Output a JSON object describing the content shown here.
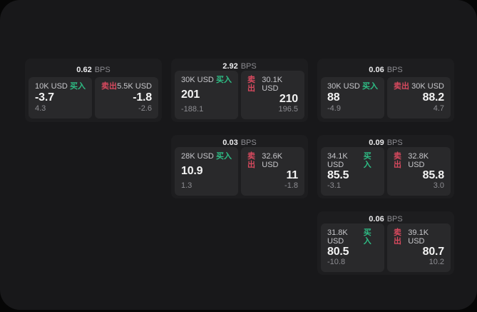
{
  "page": {
    "background": "#060606",
    "panel_background": "#18181a"
  },
  "labels": {
    "bps_unit": "BPS",
    "buy": "买入",
    "sell": "卖出"
  },
  "colors": {
    "buy_green": "#2EBD85",
    "sell_red": "#D7495E",
    "card_background": "#1D1D1F",
    "tile_background": "#29292B"
  },
  "cards": [
    {
      "bps": "0.62",
      "buy": {
        "amount": "10K USD",
        "value": "-3.7",
        "change": "4.3"
      },
      "sell": {
        "amount": "5.5K USD",
        "value": "-1.8",
        "change": "-2.6"
      }
    },
    {
      "bps": "2.92",
      "buy": {
        "amount": "30K USD",
        "value": "201",
        "change": "-188.1"
      },
      "sell": {
        "amount": "30.1K USD",
        "value": "210",
        "change": "196.5"
      }
    },
    {
      "bps": "0.06",
      "buy": {
        "amount": "30K USD",
        "value": "88",
        "change": "-4.9"
      },
      "sell": {
        "amount": "30K USD",
        "value": "88.2",
        "change": "4.7"
      }
    },
    {
      "bps": "0.03",
      "buy": {
        "amount": "28K USD",
        "value": "10.9",
        "change": "1.3"
      },
      "sell": {
        "amount": "32.6K USD",
        "value": "11",
        "change": "-1.8"
      }
    },
    {
      "bps": "0.09",
      "buy": {
        "amount": "34.1K USD",
        "value": "85.5",
        "change": "-3.1"
      },
      "sell": {
        "amount": "32.8K USD",
        "value": "85.8",
        "change": "3.0"
      }
    },
    {
      "bps": "0.06",
      "buy": {
        "amount": "31.8K USD",
        "value": "80.5",
        "change": "-10.8"
      },
      "sell": {
        "amount": "39.1K USD",
        "value": "80.7",
        "change": "10.2"
      }
    }
  ]
}
